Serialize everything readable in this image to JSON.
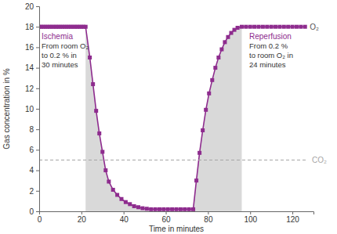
{
  "chart_data": {
    "type": "line",
    "x_label": "Time in minutes",
    "y_label": "Gas concentration in %",
    "xlim": [
      0,
      130
    ],
    "xticks": [
      0,
      20,
      40,
      60,
      80,
      100,
      120
    ],
    "ylim": [
      0,
      20
    ],
    "yticks": [
      0,
      2,
      4,
      6,
      8,
      10,
      12,
      14,
      16,
      18,
      20
    ],
    "grid": false,
    "series": [
      {
        "name": "O₂",
        "color": "#8e2c8e",
        "marker": "square",
        "line_style": "solid",
        "x": [
          0,
          1,
          2,
          3,
          4,
          5,
          6,
          7,
          8,
          9,
          10,
          11,
          12,
          13,
          14,
          15,
          16,
          17,
          18,
          19,
          20,
          21,
          22,
          24,
          25.5,
          27,
          28.5,
          30,
          31.5,
          33,
          35,
          37,
          39,
          41,
          43,
          45,
          47,
          49,
          51,
          53,
          55,
          57,
          59,
          61,
          63,
          65,
          67,
          69,
          71,
          73,
          74.5,
          76,
          77.5,
          79,
          80.5,
          82,
          83.5,
          85,
          86.5,
          88,
          89.5,
          91,
          92.5,
          94,
          96,
          98,
          100,
          102,
          104,
          106,
          108,
          110,
          112,
          114,
          116,
          118,
          120,
          122,
          124,
          126
        ],
        "values": [
          18,
          18,
          18,
          18,
          18,
          18,
          18,
          18,
          18,
          18,
          18,
          18,
          18,
          18,
          18,
          18,
          18,
          18,
          18,
          18,
          18,
          18,
          18,
          15,
          12.4,
          9.8,
          7.6,
          5.8,
          4.0,
          2.9,
          2.1,
          1.6,
          1.2,
          0.9,
          0.7,
          0.5,
          0.4,
          0.3,
          0.25,
          0.2,
          0.2,
          0.2,
          0.2,
          0.2,
          0.2,
          0.2,
          0.2,
          0.2,
          0.2,
          0.2,
          3.0,
          5.7,
          7.9,
          9.9,
          11.5,
          12.8,
          14.0,
          15.0,
          15.8,
          16.5,
          17.0,
          17.4,
          17.7,
          17.9,
          18,
          18,
          18,
          18,
          18,
          18,
          18,
          18,
          18,
          18,
          18,
          18,
          18,
          18,
          18,
          18
        ]
      },
      {
        "name": "CO₂",
        "color": "#a6a6a6",
        "marker": "none",
        "line_style": "dashed",
        "x": [
          0,
          127
        ],
        "values": [
          5,
          5
        ]
      }
    ],
    "shaded_ranges": [
      [
        22,
        52
      ],
      [
        73,
        96
      ]
    ],
    "annotations": [
      {
        "title": "Ischemia",
        "lines": [
          "From room O₂",
          "to 0.2 % in",
          "30 minutes"
        ]
      },
      {
        "title": "Reperfusion",
        "lines": [
          "From 0.2 %",
          "to room O₂ in",
          "24 minutes"
        ]
      }
    ]
  }
}
